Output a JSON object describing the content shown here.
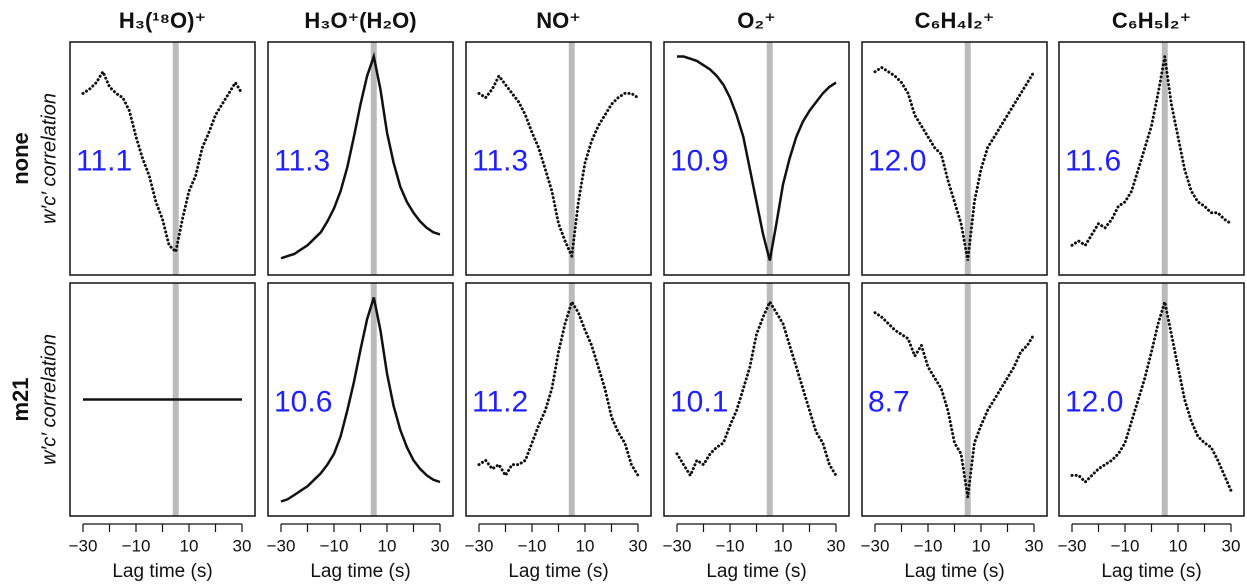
{
  "chart_data": [
    {
      "type": "scatter",
      "title": "H₃(¹⁸O)⁺",
      "row_label": "none",
      "ylabel": "w′c′ correlation",
      "annotation": "11.1",
      "annotation_color": "#1f1fff",
      "color": "#111111",
      "vline": 5,
      "vline_color": "#bbbbbb",
      "xlim": [
        -30,
        30
      ],
      "ylim": [
        0,
        1
      ],
      "x": [
        -30,
        -27.5,
        -25,
        -22.5,
        -20,
        -17.5,
        -15,
        -12.5,
        -10,
        -7.5,
        -5,
        -2.5,
        0,
        2.5,
        5,
        7.5,
        10,
        12.5,
        15,
        17.5,
        20,
        22.5,
        25,
        27.5,
        30
      ],
      "values": [
        0.8,
        0.82,
        0.85,
        0.9,
        0.83,
        0.8,
        0.78,
        0.72,
        0.6,
        0.5,
        0.42,
        0.3,
        0.22,
        0.1,
        0.07,
        0.22,
        0.35,
        0.42,
        0.55,
        0.62,
        0.7,
        0.75,
        0.8,
        0.85,
        0.8
      ]
    },
    {
      "type": "line",
      "title": "H₃O⁺(H₂O)",
      "annotation": "11.3",
      "annotation_color": "#1f1fff",
      "color": "#111111",
      "vline": 5,
      "vline_color": "#bbbbbb",
      "xlim": [
        -30,
        30
      ],
      "ylim": [
        0,
        1
      ],
      "x": [
        -30,
        -27.5,
        -25,
        -22.5,
        -20,
        -17.5,
        -15,
        -12.5,
        -10,
        -7.5,
        -5,
        -2.5,
        0,
        2.5,
        5,
        7.5,
        10,
        12.5,
        15,
        17.5,
        20,
        22.5,
        25,
        27.5,
        30
      ],
      "values": [
        0.04,
        0.05,
        0.06,
        0.08,
        0.1,
        0.13,
        0.16,
        0.21,
        0.27,
        0.35,
        0.46,
        0.6,
        0.75,
        0.88,
        0.97,
        0.82,
        0.62,
        0.48,
        0.37,
        0.3,
        0.25,
        0.21,
        0.18,
        0.16,
        0.15
      ]
    },
    {
      "type": "scatter",
      "title": "NO⁺",
      "annotation": "11.3",
      "annotation_color": "#1f1fff",
      "color": "#111111",
      "vline": 5,
      "vline_color": "#bbbbbb",
      "xlim": [
        -30,
        30
      ],
      "ylim": [
        0,
        1
      ],
      "x": [
        -30,
        -27.5,
        -25,
        -22.5,
        -20,
        -17.5,
        -15,
        -12.5,
        -10,
        -7.5,
        -5,
        -2.5,
        0,
        2.5,
        5,
        7.5,
        10,
        12.5,
        15,
        17.5,
        20,
        22.5,
        25,
        27.5,
        30
      ],
      "values": [
        0.8,
        0.78,
        0.82,
        0.88,
        0.84,
        0.8,
        0.76,
        0.7,
        0.62,
        0.55,
        0.45,
        0.35,
        0.2,
        0.12,
        0.05,
        0.3,
        0.48,
        0.58,
        0.65,
        0.7,
        0.75,
        0.78,
        0.8,
        0.8,
        0.78
      ]
    },
    {
      "type": "line",
      "title": "O₂⁺",
      "annotation": "10.9",
      "annotation_color": "#1f1fff",
      "color": "#111111",
      "vline": 5,
      "vline_color": "#bbbbbb",
      "xlim": [
        -30,
        30
      ],
      "ylim": [
        0,
        1
      ],
      "x": [
        -30,
        -27.5,
        -25,
        -22.5,
        -20,
        -17.5,
        -15,
        -12.5,
        -10,
        -7.5,
        -5,
        -2.5,
        0,
        2.5,
        5,
        7.5,
        10,
        12.5,
        15,
        17.5,
        20,
        22.5,
        25,
        27.5,
        30
      ],
      "values": [
        0.97,
        0.97,
        0.96,
        0.95,
        0.93,
        0.91,
        0.88,
        0.84,
        0.78,
        0.7,
        0.6,
        0.45,
        0.3,
        0.15,
        0.03,
        0.2,
        0.38,
        0.5,
        0.6,
        0.67,
        0.72,
        0.76,
        0.8,
        0.83,
        0.85
      ]
    },
    {
      "type": "scatter",
      "title": "C₆H₄I₂⁺",
      "annotation": "12.0",
      "annotation_color": "#1f1fff",
      "color": "#111111",
      "vline": 5,
      "vline_color": "#bbbbbb",
      "xlim": [
        -30,
        30
      ],
      "ylim": [
        0,
        1
      ],
      "x": [
        -30,
        -27.5,
        -25,
        -22.5,
        -20,
        -17.5,
        -15,
        -12.5,
        -10,
        -7.5,
        -5,
        -2.5,
        0,
        2.5,
        5,
        7.5,
        10,
        12.5,
        15,
        17.5,
        20,
        22.5,
        25,
        27.5,
        30
      ],
      "values": [
        0.9,
        0.92,
        0.9,
        0.88,
        0.85,
        0.8,
        0.7,
        0.65,
        0.6,
        0.55,
        0.52,
        0.4,
        0.3,
        0.2,
        0.03,
        0.3,
        0.45,
        0.55,
        0.6,
        0.65,
        0.7,
        0.75,
        0.8,
        0.85,
        0.9
      ]
    },
    {
      "type": "scatter",
      "title": "C₆H₅I₂⁺",
      "annotation": "11.6",
      "annotation_color": "#1f1fff",
      "color": "#111111",
      "vline": 5,
      "vline_color": "#bbbbbb",
      "xlim": [
        -30,
        30
      ],
      "ylim": [
        0,
        1
      ],
      "x": [
        -30,
        -27.5,
        -25,
        -22.5,
        -20,
        -17.5,
        -15,
        -12.5,
        -10,
        -7.5,
        -5,
        -2.5,
        0,
        2.5,
        5,
        7.5,
        10,
        12.5,
        15,
        17.5,
        20,
        22.5,
        25,
        27.5,
        30
      ],
      "values": [
        0.1,
        0.12,
        0.1,
        0.15,
        0.2,
        0.18,
        0.22,
        0.28,
        0.3,
        0.35,
        0.45,
        0.55,
        0.65,
        0.8,
        0.97,
        0.75,
        0.6,
        0.45,
        0.35,
        0.3,
        0.28,
        0.25,
        0.25,
        0.22,
        0.2
      ]
    },
    {
      "type": "line",
      "row_label": "m21",
      "ylabel": "w′c′ correlation",
      "xlabel": "Lag time (s)",
      "color": "#111111",
      "vline": 5,
      "vline_color": "#bbbbbb",
      "xlim": [
        -30,
        30
      ],
      "ylim": [
        0,
        1
      ],
      "xticks": [
        {
          "value": -30,
          "label": "−30"
        },
        {
          "value": -10,
          "label": "−10"
        },
        10,
        30
      ],
      "xminor": [
        -20,
        0,
        20
      ],
      "x": [
        -30,
        -27.5,
        -25,
        -22.5,
        -20,
        -17.5,
        -15,
        -12.5,
        -10,
        -7.5,
        -5,
        -2.5,
        0,
        2.5,
        5,
        7.5,
        10,
        12.5,
        15,
        17.5,
        20,
        22.5,
        25,
        27.5,
        30
      ],
      "values": [
        0.5,
        0.5,
        0.5,
        0.5,
        0.5,
        0.5,
        0.5,
        0.5,
        0.5,
        0.5,
        0.5,
        0.5,
        0.5,
        0.5,
        0.5,
        0.5,
        0.5,
        0.5,
        0.5,
        0.5,
        0.5,
        0.5,
        0.5,
        0.5,
        0.5
      ]
    },
    {
      "type": "line",
      "xlabel": "Lag time (s)",
      "annotation": "10.6",
      "annotation_color": "#1f1fff",
      "color": "#111111",
      "vline": 5,
      "vline_color": "#bbbbbb",
      "xlim": [
        -30,
        30
      ],
      "ylim": [
        0,
        1
      ],
      "xticks": [
        {
          "value": -30,
          "label": "−30"
        },
        {
          "value": -10,
          "label": "−10"
        },
        10,
        30
      ],
      "xminor": [
        -20,
        0,
        20
      ],
      "x": [
        -30,
        -27.5,
        -25,
        -22.5,
        -20,
        -17.5,
        -15,
        -12.5,
        -10,
        -7.5,
        -5,
        -2.5,
        0,
        2.5,
        5,
        7.5,
        10,
        12.5,
        15,
        17.5,
        20,
        22.5,
        25,
        27.5,
        30
      ],
      "values": [
        0.03,
        0.04,
        0.06,
        0.08,
        0.1,
        0.13,
        0.16,
        0.2,
        0.25,
        0.33,
        0.45,
        0.58,
        0.73,
        0.87,
        0.97,
        0.82,
        0.62,
        0.47,
        0.36,
        0.28,
        0.22,
        0.18,
        0.15,
        0.13,
        0.12
      ]
    },
    {
      "type": "scatter",
      "xlabel": "Lag time (s)",
      "annotation": "11.2",
      "annotation_color": "#1f1fff",
      "color": "#111111",
      "vline": 5,
      "vline_color": "#bbbbbb",
      "xlim": [
        -30,
        30
      ],
      "ylim": [
        0,
        1
      ],
      "xticks": [
        {
          "value": -30,
          "label": "−30"
        },
        {
          "value": -10,
          "label": "−10"
        },
        10,
        30
      ],
      "xminor": [
        -20,
        0,
        20
      ],
      "x": [
        -30,
        -27.5,
        -25,
        -22.5,
        -20,
        -17.5,
        -15,
        -12.5,
        -10,
        -7.5,
        -5,
        -2.5,
        0,
        2.5,
        5,
        7.5,
        10,
        12.5,
        15,
        17.5,
        20,
        22.5,
        25,
        27.5,
        30
      ],
      "values": [
        0.2,
        0.22,
        0.18,
        0.2,
        0.15,
        0.2,
        0.2,
        0.22,
        0.3,
        0.38,
        0.45,
        0.55,
        0.72,
        0.85,
        0.95,
        0.9,
        0.82,
        0.75,
        0.65,
        0.55,
        0.42,
        0.35,
        0.3,
        0.2,
        0.15
      ]
    },
    {
      "type": "scatter",
      "xlabel": "Lag time (s)",
      "annotation": "10.1",
      "annotation_color": "#1f1fff",
      "color": "#111111",
      "vline": 5,
      "vline_color": "#bbbbbb",
      "xlim": [
        -30,
        30
      ],
      "ylim": [
        0,
        1
      ],
      "xticks": [
        {
          "value": -30,
          "label": "−30"
        },
        {
          "value": -10,
          "label": "−10"
        },
        10,
        30
      ],
      "xminor": [
        -20,
        0,
        20
      ],
      "x": [
        -30,
        -27.5,
        -25,
        -22.5,
        -20,
        -17.5,
        -15,
        -12.5,
        -10,
        -7.5,
        -5,
        -2.5,
        0,
        2.5,
        5,
        7.5,
        10,
        12.5,
        15,
        17.5,
        20,
        22.5,
        25,
        27.5,
        30
      ],
      "values": [
        0.25,
        0.2,
        0.15,
        0.22,
        0.2,
        0.25,
        0.28,
        0.3,
        0.38,
        0.45,
        0.55,
        0.65,
        0.8,
        0.88,
        0.95,
        0.9,
        0.85,
        0.75,
        0.65,
        0.55,
        0.45,
        0.35,
        0.3,
        0.2,
        0.15
      ]
    },
    {
      "type": "scatter",
      "xlabel": "Lag time (s)",
      "annotation": "8.7",
      "annotation_color": "#1f1fff",
      "color": "#111111",
      "vline": 5,
      "vline_color": "#bbbbbb",
      "xlim": [
        -30,
        30
      ],
      "ylim": [
        0,
        1
      ],
      "xticks": [
        {
          "value": -30,
          "label": "−30"
        },
        {
          "value": -10,
          "label": "−10"
        },
        10,
        30
      ],
      "xminor": [
        -20,
        0,
        20
      ],
      "x": [
        -30,
        -27.5,
        -25,
        -22.5,
        -20,
        -17.5,
        -15,
        -12.5,
        -10,
        -7.5,
        -5,
        -2.5,
        0,
        2.5,
        5,
        7.5,
        10,
        12.5,
        15,
        17.5,
        20,
        22.5,
        25,
        27.5,
        30
      ],
      "values": [
        0.9,
        0.88,
        0.85,
        0.82,
        0.8,
        0.78,
        0.7,
        0.75,
        0.65,
        0.6,
        0.55,
        0.45,
        0.3,
        0.25,
        0.05,
        0.3,
        0.38,
        0.45,
        0.5,
        0.55,
        0.6,
        0.65,
        0.72,
        0.75,
        0.8
      ]
    },
    {
      "type": "scatter",
      "xlabel": "Lag time (s)",
      "annotation": "12.0",
      "annotation_color": "#1f1fff",
      "color": "#111111",
      "vline": 5,
      "vline_color": "#bbbbbb",
      "xlim": [
        -30,
        30
      ],
      "ylim": [
        0,
        1
      ],
      "xticks": [
        {
          "value": -30,
          "label": "−30"
        },
        {
          "value": -10,
          "label": "−10"
        },
        10,
        30
      ],
      "xminor": [
        -20,
        0,
        20
      ],
      "x": [
        -30,
        -27.5,
        -25,
        -22.5,
        -20,
        -17.5,
        -15,
        -12.5,
        -10,
        -7.5,
        -5,
        -2.5,
        0,
        2.5,
        5,
        7.5,
        10,
        12.5,
        15,
        17.5,
        20,
        22.5,
        25,
        27.5,
        30
      ],
      "values": [
        0.15,
        0.15,
        0.12,
        0.15,
        0.18,
        0.2,
        0.22,
        0.25,
        0.3,
        0.4,
        0.5,
        0.6,
        0.72,
        0.85,
        0.95,
        0.8,
        0.65,
        0.5,
        0.4,
        0.33,
        0.3,
        0.28,
        0.22,
        0.15,
        0.08
      ]
    }
  ]
}
